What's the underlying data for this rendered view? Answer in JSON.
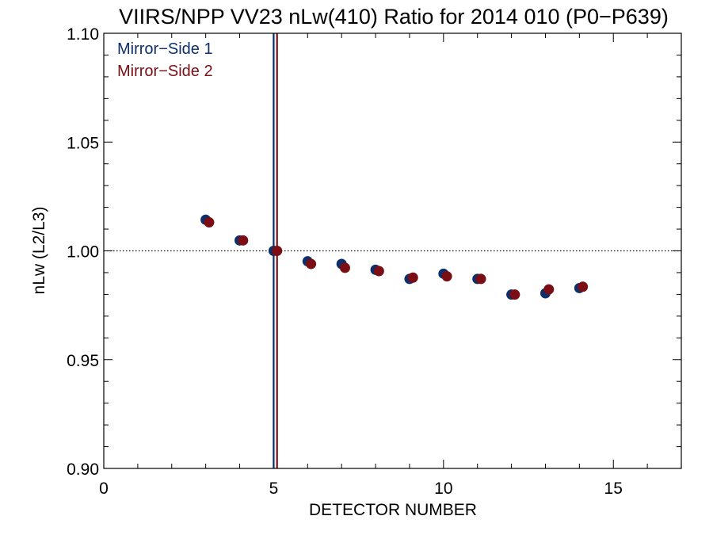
{
  "chart_data": {
    "type": "scatter",
    "title": "VIIRS/NPP VV23 nLw(410) Ratio for 2014 010 (P0−P639)",
    "xlabel": "DETECTOR NUMBER",
    "ylabel": "nLw (L2/L3)",
    "xlim": [
      0,
      17
    ],
    "ylim": [
      0.9,
      1.1
    ],
    "x_ticks": [
      0,
      5,
      10,
      15
    ],
    "x_tick_labels": [
      "0",
      "5",
      "10",
      "15"
    ],
    "y_ticks": [
      0.9,
      0.95,
      1.0,
      1.05,
      1.1
    ],
    "y_tick_labels": [
      "0.90",
      "0.95",
      "1.00",
      "1.05",
      "1.10"
    ],
    "reference_line_y": 1.0,
    "legend_position": "top-left",
    "series": [
      {
        "name": "Mirror−Side 1",
        "color": "#0d2f6b",
        "points": [
          {
            "x": 3,
            "y": 1.0143
          },
          {
            "x": 4,
            "y": 1.0048
          },
          {
            "x": 5,
            "y": 1.0
          },
          {
            "x": 6,
            "y": 0.9952
          },
          {
            "x": 7,
            "y": 0.994
          },
          {
            "x": 8,
            "y": 0.9913
          },
          {
            "x": 9,
            "y": 0.9871
          },
          {
            "x": 10,
            "y": 0.9895
          },
          {
            "x": 11,
            "y": 0.9871
          },
          {
            "x": 12,
            "y": 0.9799
          },
          {
            "x": 13,
            "y": 0.9805
          },
          {
            "x": 14,
            "y": 0.9829
          }
        ],
        "vline_x": 5.0
      },
      {
        "name": "Mirror−Side 2",
        "color": "#7a0e14",
        "points": [
          {
            "x": 3.1,
            "y": 1.0131
          },
          {
            "x": 4.1,
            "y": 1.0048
          },
          {
            "x": 5.1,
            "y": 1.0
          },
          {
            "x": 6.1,
            "y": 0.994
          },
          {
            "x": 7.1,
            "y": 0.9922
          },
          {
            "x": 8.1,
            "y": 0.9907
          },
          {
            "x": 9.1,
            "y": 0.9877
          },
          {
            "x": 10.1,
            "y": 0.9883
          },
          {
            "x": 11.1,
            "y": 0.9871
          },
          {
            "x": 12.1,
            "y": 0.9799
          },
          {
            "x": 13.1,
            "y": 0.9823
          },
          {
            "x": 14.1,
            "y": 0.9835
          }
        ],
        "vline_x": 5.1
      }
    ]
  }
}
